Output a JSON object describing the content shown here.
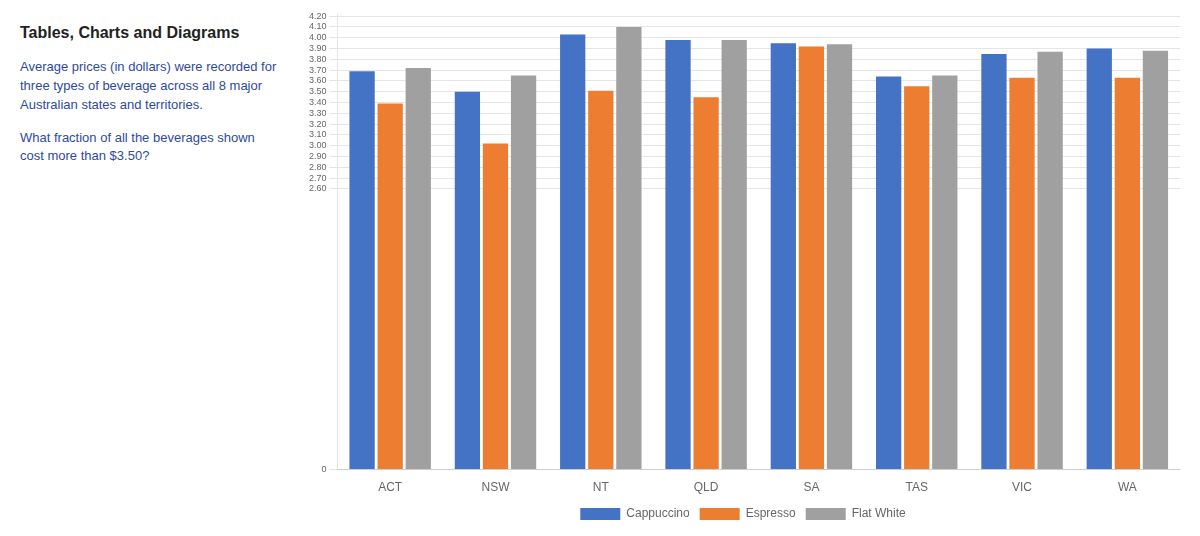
{
  "chart_data": {
    "type": "bar",
    "title": "Tables, Charts and Diagrams",
    "annotations": [
      "Average prices (in dollars) were recorded for three types of beverage across all 8 major Australian states and territories.",
      "What fraction of all the beverages shown cost more than $3.50?"
    ],
    "categories": [
      "ACT",
      "NSW",
      "NT",
      "QLD",
      "SA",
      "TAS",
      "VIC",
      "WA"
    ],
    "series": [
      {
        "name": "Cappuccino",
        "color": "#4472C4",
        "values": [
          3.69,
          3.5,
          4.03,
          3.98,
          3.95,
          3.64,
          3.85,
          3.9
        ]
      },
      {
        "name": "Espresso",
        "color": "#ED7D31",
        "values": [
          3.39,
          3.02,
          3.51,
          3.45,
          3.92,
          3.55,
          3.63,
          3.63
        ]
      },
      {
        "name": "Flat White",
        "color": "#A0A0A0",
        "values": [
          3.72,
          3.65,
          4.1,
          3.98,
          3.94,
          3.65,
          3.87,
          3.88
        ]
      }
    ],
    "ylim": [
      0,
      4.22
    ],
    "yticks": [
      0,
      {
        "value": 2.6,
        "label": "2.60"
      },
      {
        "value": 2.7,
        "label": "2.70"
      },
      {
        "value": 2.8,
        "label": "2.80"
      },
      {
        "value": 2.9,
        "label": "2.90"
      },
      {
        "value": 3.0,
        "label": "3.00"
      },
      {
        "value": 3.1,
        "label": "3.10"
      },
      {
        "value": 3.2,
        "label": "3.20"
      },
      {
        "value": 3.3,
        "label": "3.30"
      },
      {
        "value": 3.4,
        "label": "3.40"
      },
      {
        "value": 3.5,
        "label": "3.50"
      },
      {
        "value": 3.6,
        "label": "3.60"
      },
      {
        "value": 3.7,
        "label": "3.70"
      },
      {
        "value": 3.8,
        "label": "3.80"
      },
      {
        "value": 3.9,
        "label": "3.90"
      },
      {
        "value": 4.0,
        "label": "4.00"
      },
      {
        "value": 4.1,
        "label": "4.10"
      },
      {
        "value": 4.2,
        "label": "4.20"
      }
    ],
    "grid": true,
    "legend": "bottom"
  }
}
